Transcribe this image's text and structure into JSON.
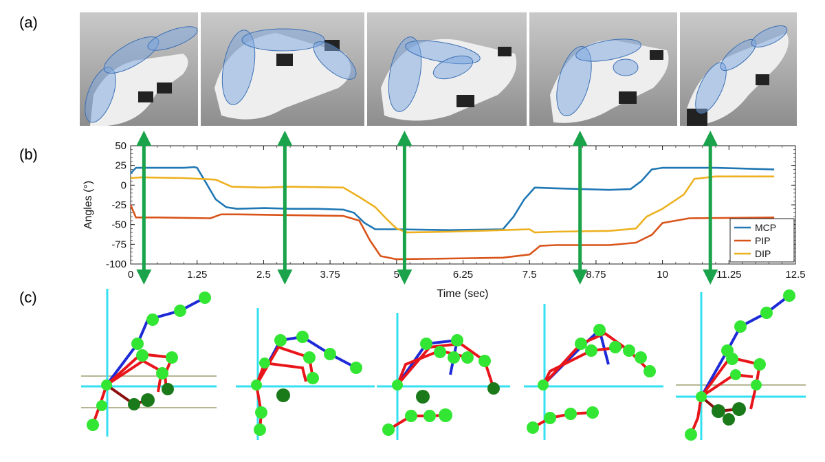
{
  "panel_labels": {
    "a": "(a)",
    "b": "(b)",
    "c": "(c)"
  },
  "colors": {
    "MCP": "#1f77b4",
    "PIP": "#d95319",
    "DIP": "#edb120",
    "arrow": "#1aa34a",
    "joint": "#33e633",
    "bone_red": "#e8151b",
    "bone_blue": "#1d2ad6",
    "cyan": "#33e0f0"
  },
  "chart_data": {
    "type": "line",
    "title": "",
    "xlabel": "Time (sec)",
    "ylabel": "Angles (°)",
    "xlim": [
      0,
      12.5
    ],
    "ylim": [
      -100,
      50
    ],
    "xticks": [
      0,
      1.25,
      2.5,
      3.75,
      5,
      6.25,
      7.5,
      8.75,
      10,
      11.25,
      12.5
    ],
    "xtick_labels": [
      "0",
      "1.25",
      "2.5",
      "3.75",
      "5",
      "6.25",
      "7.5",
      "8.75",
      "10",
      "11.25",
      "12.5"
    ],
    "yticks": [
      50,
      25,
      0,
      -25,
      -50,
      -75,
      -100
    ],
    "ytick_labels": [
      "50",
      "25",
      "0",
      "-25",
      "-50",
      "-75",
      "-100"
    ],
    "grid": false,
    "legend_position": "bottom-right",
    "series": [
      {
        "name": "MCP",
        "x": [
          0,
          0.1,
          0.5,
          1.0,
          1.2,
          1.25,
          1.4,
          1.6,
          1.8,
          2.0,
          2.5,
          3.0,
          3.5,
          4.0,
          4.2,
          4.4,
          4.6,
          5.0,
          6.0,
          7.0,
          7.2,
          7.4,
          7.6,
          8.0,
          9.0,
          9.4,
          9.6,
          9.8,
          10.0,
          11.0,
          12.1
        ],
        "y": [
          15,
          22,
          22,
          22,
          23,
          22,
          5,
          -18,
          -28,
          -30,
          -29,
          -30,
          -30,
          -31,
          -35,
          -48,
          -56,
          -56,
          -57,
          -56,
          -40,
          -18,
          -3,
          -4,
          -6,
          -5,
          5,
          20,
          22,
          22,
          20
        ]
      },
      {
        "name": "PIP",
        "x": [
          0,
          0.1,
          0.5,
          1.5,
          1.7,
          2.0,
          3.0,
          4.0,
          4.3,
          4.5,
          4.7,
          5.0,
          6.0,
          7.0,
          7.5,
          7.7,
          8.0,
          9.0,
          9.5,
          9.8,
          10.0,
          10.5,
          12.1
        ],
        "y": [
          -25,
          -41,
          -41,
          -42,
          -37,
          -37,
          -38,
          -39,
          -45,
          -70,
          -90,
          -94,
          -93,
          -92,
          -88,
          -77,
          -76,
          -76,
          -73,
          -63,
          -48,
          -42,
          -41
        ]
      },
      {
        "name": "DIP",
        "x": [
          0,
          0.2,
          1.0,
          1.6,
          1.9,
          2.5,
          3.0,
          4.0,
          4.3,
          4.6,
          4.8,
          5.0,
          5.2,
          6.0,
          7.0,
          7.5,
          7.6,
          8.0,
          9.0,
          9.5,
          9.7,
          10.0,
          10.4,
          10.6,
          11.0,
          12.1
        ],
        "y": [
          9,
          10,
          9,
          7,
          -2,
          -3,
          -2,
          -3,
          -15,
          -28,
          -42,
          -55,
          -60,
          -59,
          -57,
          -56,
          -60,
          -59,
          -58,
          -55,
          -40,
          -30,
          -12,
          8,
          11,
          11
        ]
      }
    ],
    "vertical_arrows_x": [
      0.25,
      2.9,
      5.15,
      8.45,
      10.9
    ]
  }
}
